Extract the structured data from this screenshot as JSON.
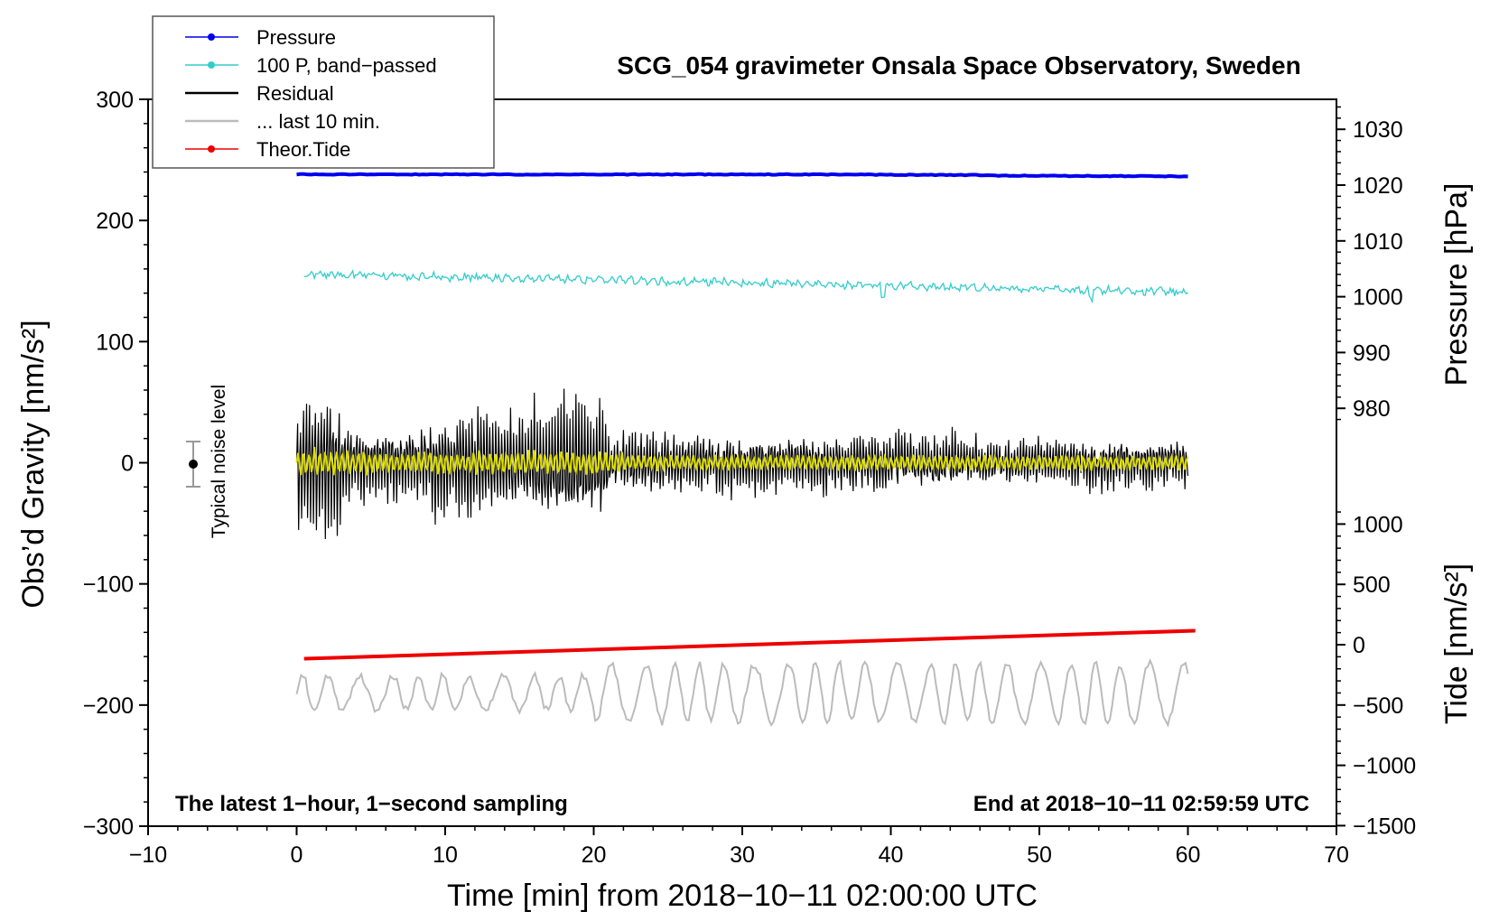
{
  "chart_data": {
    "type": "line",
    "title": "SCG_054 gravimeter Onsala Space Observatory, Sweden",
    "xlabel": "Time [min] from 2018−10−11 02:00:00 UTC",
    "ylabel_left": "Obs’d Gravity [nm/s²]",
    "ylabel_right_pressure": "Pressure [hPa]",
    "ylabel_right_tide": "Tide [nm/s²]",
    "xlim": [
      -10,
      70
    ],
    "ylim_left": [
      -300,
      300
    ],
    "x_ticks": [
      -10,
      0,
      10,
      20,
      30,
      40,
      50,
      60,
      70
    ],
    "x_tick_labels": [
      "−10",
      "0",
      "10",
      "20",
      "30",
      "40",
      "50",
      "60",
      "70"
    ],
    "y_left_ticks": [
      300,
      200,
      100,
      0,
      -100,
      -200,
      -300
    ],
    "y_left_tick_labels": [
      "300",
      "200",
      "100",
      "0",
      "−100",
      "−200",
      "−300"
    ],
    "pressure_ticks": [
      1030,
      1020,
      1010,
      1000,
      990,
      980
    ],
    "pressure_tick_labels": [
      "1030",
      "1020",
      "1010",
      "1000",
      "990",
      "980"
    ],
    "tide_ticks": [
      1000,
      500,
      0,
      -500,
      -1000,
      -1500
    ],
    "tide_tick_labels": [
      "1000",
      "500",
      "0",
      "−500",
      "−1000",
      "−1500"
    ],
    "legend": [
      {
        "label": "Pressure",
        "color": "#0000ee",
        "marker": true
      },
      {
        "label": "100 P, band−passed",
        "color": "#33cccc",
        "marker": true
      },
      {
        "label": "Residual",
        "color": "#000000",
        "marker": false
      },
      {
        "label": "... last 10 min.",
        "color": "#bbbbbb",
        "marker": false
      },
      {
        "label": "Theor.Tide",
        "color": "#ee0000",
        "marker": true
      }
    ],
    "legend_position": "top-left",
    "series": [
      {
        "name": "Pressure",
        "axis": "left",
        "x_start": 0,
        "x_end": 60,
        "values_approx": [
          238,
          238,
          238,
          238,
          237.5,
          237,
          237,
          237
        ],
        "color": "#0000ee"
      },
      {
        "name": "100 P, band-passed",
        "axis": "left",
        "x_start": 0.5,
        "x_end": 60,
        "values_approx": [
          156,
          152,
          150,
          146,
          144,
          140,
          138,
          142
        ],
        "color": "#33cccc"
      },
      {
        "name": "Residual",
        "axis": "left",
        "x_start": 0,
        "x_end": 60,
        "amplitude_range": [
          -85,
          95
        ],
        "color": "#000000"
      },
      {
        "name": "Residual (smoothed)",
        "axis": "left",
        "x_start": 0,
        "x_end": 60,
        "amplitude_range": [
          -20,
          20
        ],
        "color": "#dddd00"
      },
      {
        "name": "Theor.Tide",
        "axis": "tide",
        "x_start": 0.5,
        "x_end": 60.5,
        "values": [
          -116,
          116
        ],
        "color": "#ee0000"
      },
      {
        "name": "... last 10 min.",
        "axis": "left",
        "x_start": 0,
        "x_end": 60,
        "values_range": [
          -228,
          -163
        ],
        "color": "#bbbbbb"
      }
    ],
    "noise_bar": {
      "x": -7,
      "center": 0,
      "half_range": 20,
      "label": "Typical noise level"
    },
    "annotations": {
      "bottom_left": "The latest 1−hour, 1−second sampling",
      "bottom_right": "End at 2018−10−11 02:59:59 UTC"
    }
  }
}
